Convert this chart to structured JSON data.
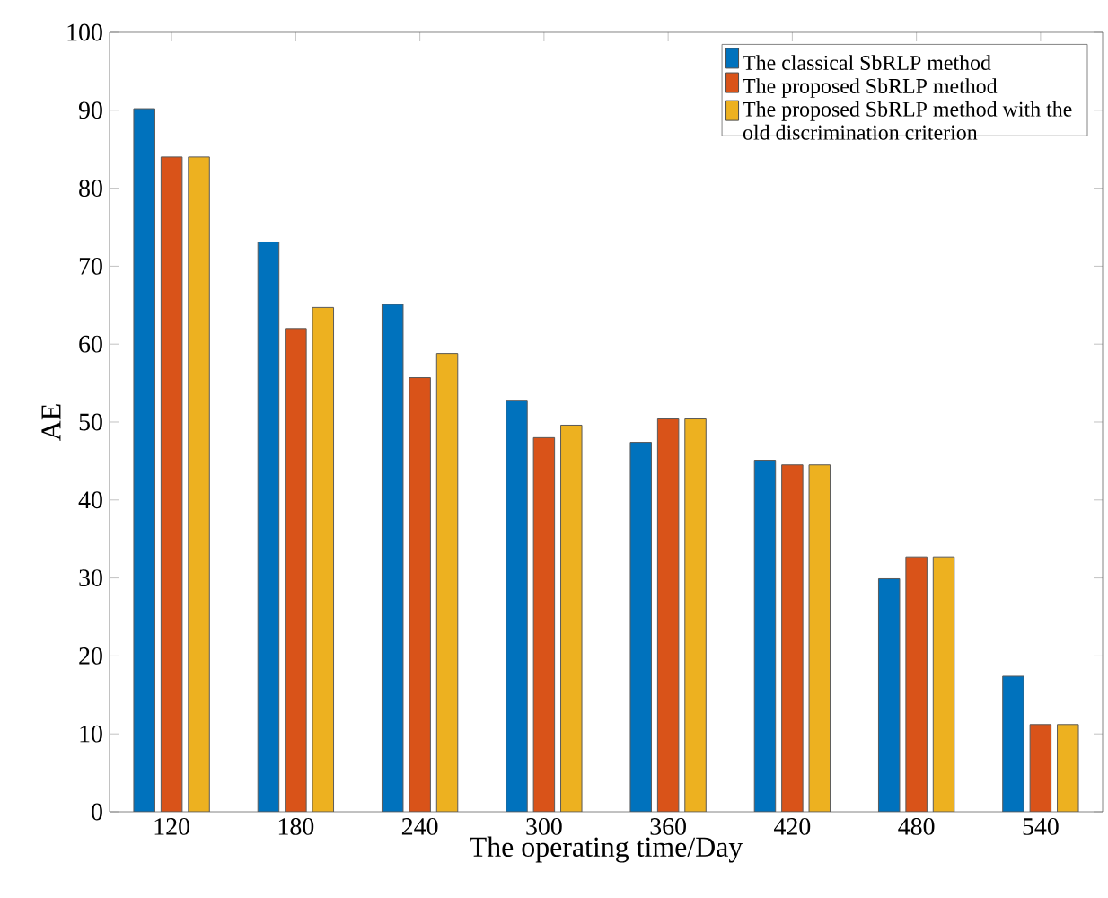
{
  "chart_data": {
    "type": "bar",
    "xlabel": "The operating time/Day",
    "ylabel": "AE",
    "categories": [
      "120",
      "180",
      "240",
      "300",
      "360",
      "420",
      "480",
      "540"
    ],
    "series": [
      {
        "name": "The classical SbRLP method",
        "color": "#0072bd",
        "values": [
          90.2,
          73.1,
          65.1,
          52.8,
          47.4,
          45.1,
          29.9,
          17.4
        ]
      },
      {
        "name": "The proposed SbRLP method",
        "color": "#d95319",
        "values": [
          84.0,
          62.0,
          55.7,
          48.0,
          50.4,
          44.5,
          32.7,
          11.2
        ]
      },
      {
        "name": "The proposed SbRLP method with the old discrimination criterion",
        "color": "#edb120",
        "values": [
          84.0,
          64.7,
          58.8,
          49.6,
          50.4,
          44.5,
          32.7,
          11.2
        ]
      }
    ],
    "ylim": [
      0,
      100
    ],
    "yticks": [
      0,
      10,
      20,
      30,
      40,
      50,
      60,
      70,
      80,
      90,
      100
    ],
    "grid": false,
    "legend": "top right"
  }
}
